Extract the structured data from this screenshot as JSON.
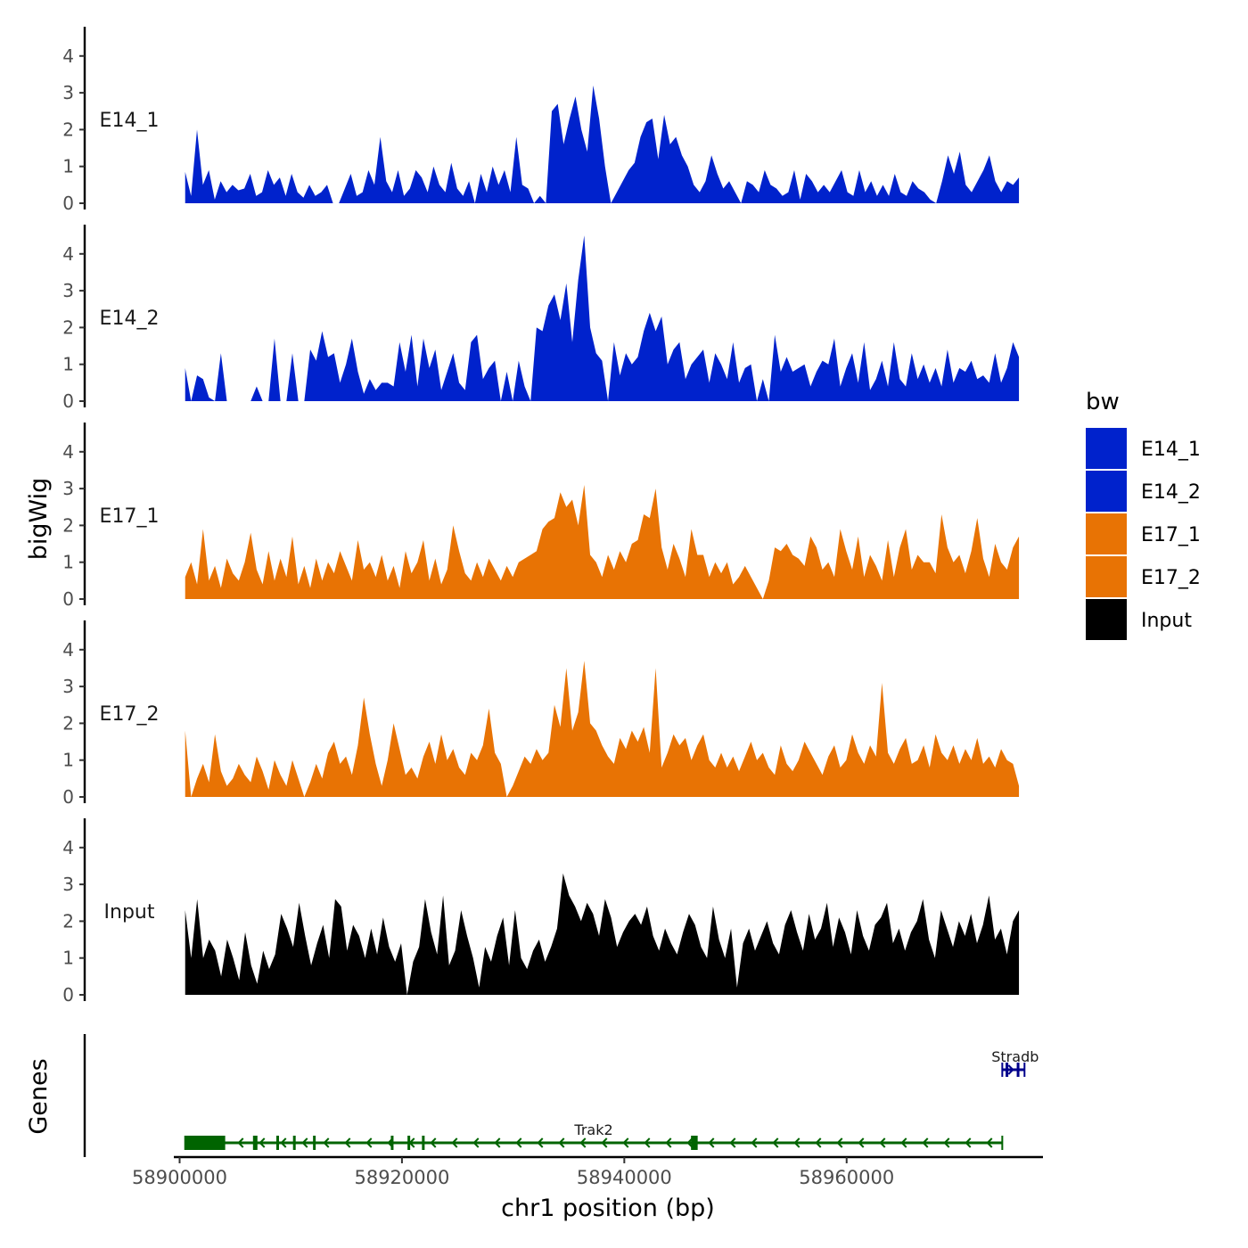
{
  "chart_data": {
    "type": "area",
    "title": "",
    "xlabel": "chr1 position (bp)",
    "ylabel": "bigWig",
    "genes_label": "Genes",
    "xlim": [
      58899800,
      58977500
    ],
    "ylim": [
      0,
      4.8
    ],
    "x_ticks": [
      58900000,
      58920000,
      58940000,
      58960000
    ],
    "x_tick_labels": [
      "58900000",
      "58920000",
      "58940000",
      "58960000"
    ],
    "y_ticks": [
      0,
      1,
      2,
      3,
      4
    ],
    "y_tick_labels": [
      "0",
      "1",
      "2",
      "3",
      "4"
    ],
    "legend": {
      "title": "bw",
      "position": "right",
      "entries": [
        {
          "label": "E14_1",
          "color": "#0022CC"
        },
        {
          "label": "E14_2",
          "color": "#0022CC"
        },
        {
          "label": "E17_1",
          "color": "#E87304"
        },
        {
          "label": "E17_2",
          "color": "#E87304"
        },
        {
          "label": "Input",
          "color": "#000000"
        }
      ]
    },
    "x_start": 58900500,
    "x_end": 58975500,
    "series": [
      {
        "name": "E14_1",
        "color": "#0022CC",
        "values": [
          0.85,
          0.2,
          2.0,
          0.5,
          0.9,
          0.1,
          0.6,
          0.3,
          0.5,
          0.35,
          0.4,
          0.8,
          0.2,
          0.3,
          0.9,
          0.5,
          0.7,
          0.2,
          0.8,
          0.3,
          0.15,
          0.5,
          0.2,
          0.3,
          0.5,
          0.0,
          0.0,
          0.4,
          0.8,
          0.2,
          0.3,
          0.9,
          0.5,
          1.8,
          0.6,
          0.3,
          0.9,
          0.2,
          0.4,
          0.9,
          0.7,
          0.3,
          1.0,
          0.5,
          0.3,
          1.1,
          0.4,
          0.2,
          0.6,
          0.0,
          0.8,
          0.3,
          1.0,
          0.5,
          0.9,
          0.3,
          1.8,
          0.5,
          0.4,
          0.0,
          0.2,
          0.0,
          2.5,
          2.7,
          1.6,
          2.3,
          2.9,
          2.0,
          1.4,
          3.2,
          2.3,
          1.0,
          0.0,
          0.3,
          0.6,
          0.9,
          1.1,
          1.8,
          2.2,
          2.3,
          1.2,
          2.4,
          1.6,
          1.8,
          1.3,
          1.0,
          0.5,
          0.3,
          0.6,
          1.3,
          0.8,
          0.4,
          0.6,
          0.3,
          0.0,
          0.6,
          0.5,
          0.3,
          0.9,
          0.5,
          0.4,
          0.2,
          0.3,
          0.9,
          0.1,
          0.8,
          0.6,
          0.3,
          0.5,
          0.3,
          0.6,
          0.9,
          0.3,
          0.2,
          0.9,
          0.3,
          0.6,
          0.2,
          0.5,
          0.2,
          0.8,
          0.3,
          0.2,
          0.6,
          0.4,
          0.3,
          0.1,
          0.0,
          0.6,
          1.3,
          0.8,
          1.4,
          0.5,
          0.3,
          0.6,
          0.9,
          1.3,
          0.6,
          0.3,
          0.6,
          0.5,
          0.7
        ]
      },
      {
        "name": "E14_2",
        "color": "#0022CC",
        "values": [
          0.9,
          0.0,
          0.7,
          0.6,
          0.1,
          0.0,
          1.3,
          0.0,
          0.0,
          0.0,
          0.0,
          0.0,
          0.4,
          0.0,
          0.0,
          1.7,
          0.0,
          0.0,
          1.3,
          0.0,
          0.0,
          1.4,
          1.1,
          1.9,
          1.2,
          1.3,
          0.5,
          1.0,
          1.7,
          0.8,
          0.2,
          0.6,
          0.3,
          0.5,
          0.5,
          0.4,
          1.6,
          0.8,
          1.8,
          0.4,
          1.7,
          0.9,
          1.4,
          0.3,
          0.8,
          1.3,
          0.5,
          0.3,
          1.6,
          1.8,
          0.6,
          0.9,
          1.1,
          0.0,
          0.8,
          0.0,
          1.1,
          0.4,
          0.0,
          2.0,
          1.9,
          2.6,
          2.9,
          2.2,
          3.2,
          1.6,
          3.3,
          4.5,
          2.0,
          1.3,
          1.1,
          0.0,
          1.6,
          0.7,
          1.3,
          1.0,
          1.2,
          1.9,
          2.4,
          1.9,
          2.3,
          1.0,
          1.4,
          1.6,
          0.6,
          1.0,
          1.2,
          1.4,
          0.5,
          1.3,
          1.0,
          0.6,
          1.6,
          0.5,
          0.9,
          1.0,
          0.0,
          0.6,
          0.0,
          1.8,
          0.8,
          1.2,
          0.8,
          0.9,
          1.0,
          0.4,
          0.8,
          1.1,
          1.0,
          1.7,
          0.4,
          0.9,
          1.3,
          0.5,
          1.6,
          0.3,
          0.6,
          1.1,
          0.4,
          1.6,
          0.6,
          0.4,
          1.3,
          0.6,
          1.0,
          0.5,
          0.9,
          0.4,
          1.4,
          0.5,
          0.9,
          0.8,
          1.1,
          0.6,
          0.7,
          0.5,
          1.3,
          0.5,
          0.9,
          1.6,
          1.2
        ]
      },
      {
        "name": "E17_1",
        "color": "#E87304",
        "values": [
          0.6,
          1.0,
          0.4,
          1.9,
          0.5,
          0.9,
          0.3,
          1.1,
          0.7,
          0.5,
          1.0,
          1.8,
          0.8,
          0.4,
          1.3,
          0.5,
          1.1,
          0.6,
          1.7,
          0.4,
          0.9,
          0.3,
          1.1,
          0.5,
          1.0,
          0.7,
          1.3,
          0.9,
          0.5,
          1.6,
          0.8,
          1.0,
          0.6,
          1.2,
          0.5,
          0.9,
          0.3,
          1.3,
          0.7,
          1.0,
          1.6,
          0.5,
          1.1,
          0.4,
          0.8,
          2.0,
          1.3,
          0.7,
          0.5,
          1.0,
          0.6,
          1.1,
          0.8,
          0.5,
          0.9,
          0.6,
          1.0,
          1.1,
          1.2,
          1.3,
          1.9,
          2.1,
          2.2,
          2.9,
          2.5,
          2.7,
          2.0,
          3.1,
          1.2,
          1.0,
          0.6,
          1.2,
          0.8,
          1.3,
          1.0,
          1.5,
          1.6,
          2.3,
          2.2,
          3.0,
          1.4,
          0.8,
          1.5,
          1.1,
          0.6,
          1.9,
          1.2,
          1.2,
          0.6,
          1.0,
          0.7,
          1.0,
          0.4,
          0.6,
          0.9,
          0.6,
          0.3,
          0.0,
          0.5,
          1.4,
          1.3,
          1.5,
          1.2,
          1.1,
          0.9,
          1.7,
          1.4,
          0.8,
          1.0,
          0.6,
          1.9,
          1.3,
          0.8,
          1.7,
          0.6,
          1.2,
          0.9,
          0.5,
          1.6,
          0.6,
          1.4,
          1.9,
          0.8,
          1.2,
          1.0,
          1.0,
          0.7,
          2.3,
          1.4,
          1.0,
          1.2,
          0.7,
          1.3,
          2.2,
          1.1,
          0.6,
          1.5,
          1.0,
          0.8,
          1.4,
          1.7
        ]
      },
      {
        "name": "E17_2",
        "color": "#E87304",
        "values": [
          1.8,
          0.0,
          0.5,
          0.9,
          0.4,
          1.7,
          0.7,
          0.3,
          0.5,
          0.9,
          0.6,
          0.4,
          1.1,
          0.7,
          0.2,
          1.0,
          0.6,
          0.3,
          1.0,
          0.5,
          0.0,
          0.4,
          0.9,
          0.5,
          1.2,
          1.5,
          0.9,
          1.1,
          0.6,
          1.4,
          2.7,
          1.7,
          0.9,
          0.3,
          1.0,
          2.0,
          1.3,
          0.6,
          0.8,
          0.5,
          1.1,
          1.5,
          0.9,
          1.7,
          1.0,
          1.3,
          0.8,
          0.6,
          1.2,
          1.0,
          1.4,
          2.4,
          1.2,
          0.9,
          0.0,
          0.3,
          0.7,
          1.1,
          0.9,
          1.3,
          1.0,
          1.2,
          2.5,
          1.9,
          3.5,
          1.8,
          2.3,
          3.7,
          2.0,
          1.8,
          1.4,
          1.1,
          0.9,
          1.6,
          1.3,
          1.8,
          1.5,
          1.9,
          1.2,
          3.5,
          0.8,
          1.2,
          1.7,
          1.4,
          1.6,
          1.0,
          1.4,
          1.7,
          1.0,
          0.8,
          1.2,
          0.8,
          1.1,
          0.7,
          1.1,
          1.5,
          1.0,
          1.2,
          0.8,
          0.6,
          1.4,
          0.9,
          0.7,
          1.0,
          1.5,
          1.2,
          0.9,
          0.6,
          1.1,
          1.4,
          0.8,
          1.0,
          1.7,
          1.2,
          0.9,
          1.4,
          1.1,
          3.1,
          1.2,
          0.9,
          1.3,
          1.6,
          0.9,
          1.0,
          1.4,
          0.8,
          1.7,
          1.2,
          1.0,
          1.4,
          0.9,
          1.3,
          1.0,
          1.6,
          0.9,
          1.1,
          0.8,
          1.3,
          1.0,
          0.9,
          0.3
        ]
      },
      {
        "name": "Input",
        "color": "#000000",
        "values": [
          2.3,
          1.0,
          2.6,
          1.0,
          1.5,
          1.2,
          0.5,
          1.5,
          1.0,
          0.4,
          1.7,
          0.8,
          0.3,
          1.2,
          0.7,
          1.1,
          2.2,
          1.8,
          1.3,
          2.5,
          1.6,
          0.8,
          1.4,
          1.9,
          1.0,
          2.6,
          2.4,
          1.2,
          1.9,
          1.6,
          1.0,
          1.8,
          1.1,
          2.1,
          1.3,
          0.9,
          1.4,
          0.0,
          0.9,
          1.3,
          2.6,
          1.7,
          1.1,
          2.7,
          0.8,
          1.2,
          2.3,
          1.6,
          1.0,
          0.2,
          1.3,
          0.9,
          1.6,
          2.1,
          0.8,
          2.3,
          1.0,
          0.7,
          1.2,
          1.5,
          0.9,
          1.3,
          1.8,
          3.3,
          2.7,
          2.4,
          2.0,
          2.5,
          2.2,
          1.6,
          2.6,
          2.1,
          1.3,
          1.7,
          2.0,
          2.2,
          1.9,
          2.4,
          1.6,
          1.2,
          1.8,
          1.4,
          1.1,
          1.7,
          2.2,
          1.9,
          1.3,
          1.0,
          2.4,
          1.5,
          1.0,
          1.8,
          0.2,
          1.4,
          1.8,
          1.2,
          1.6,
          2.0,
          1.4,
          1.1,
          1.9,
          2.3,
          1.7,
          1.2,
          2.2,
          1.5,
          1.8,
          2.5,
          1.3,
          2.1,
          1.7,
          1.1,
          2.3,
          1.6,
          1.2,
          1.9,
          2.1,
          2.5,
          1.4,
          1.8,
          1.2,
          1.7,
          2.0,
          2.6,
          1.5,
          1.0,
          2.3,
          1.8,
          1.3,
          2.0,
          1.6,
          2.2,
          1.4,
          1.9,
          2.7,
          1.5,
          1.8,
          1.1,
          2.0,
          2.3
        ]
      }
    ],
    "genes": [
      {
        "name": "Trak2",
        "strand": "-",
        "color": "#006400",
        "start": 58900500,
        "end": 58974000,
        "exons": [
          [
            58900500,
            58904100
          ],
          [
            58906600,
            58907000
          ],
          [
            58908700,
            58908900
          ],
          [
            58910200,
            58910400
          ],
          [
            58912000,
            58912200
          ],
          [
            58919000,
            58919200
          ],
          [
            58920500,
            58920700
          ],
          [
            58921800,
            58922000
          ],
          [
            58946000,
            58946600
          ]
        ]
      },
      {
        "name": "Stradb",
        "strand": "+",
        "color": "#00008B",
        "start": 58974000,
        "end": 58976000,
        "exons": [
          [
            58974300,
            58974500
          ],
          [
            58975300,
            58975500
          ]
        ]
      }
    ]
  }
}
